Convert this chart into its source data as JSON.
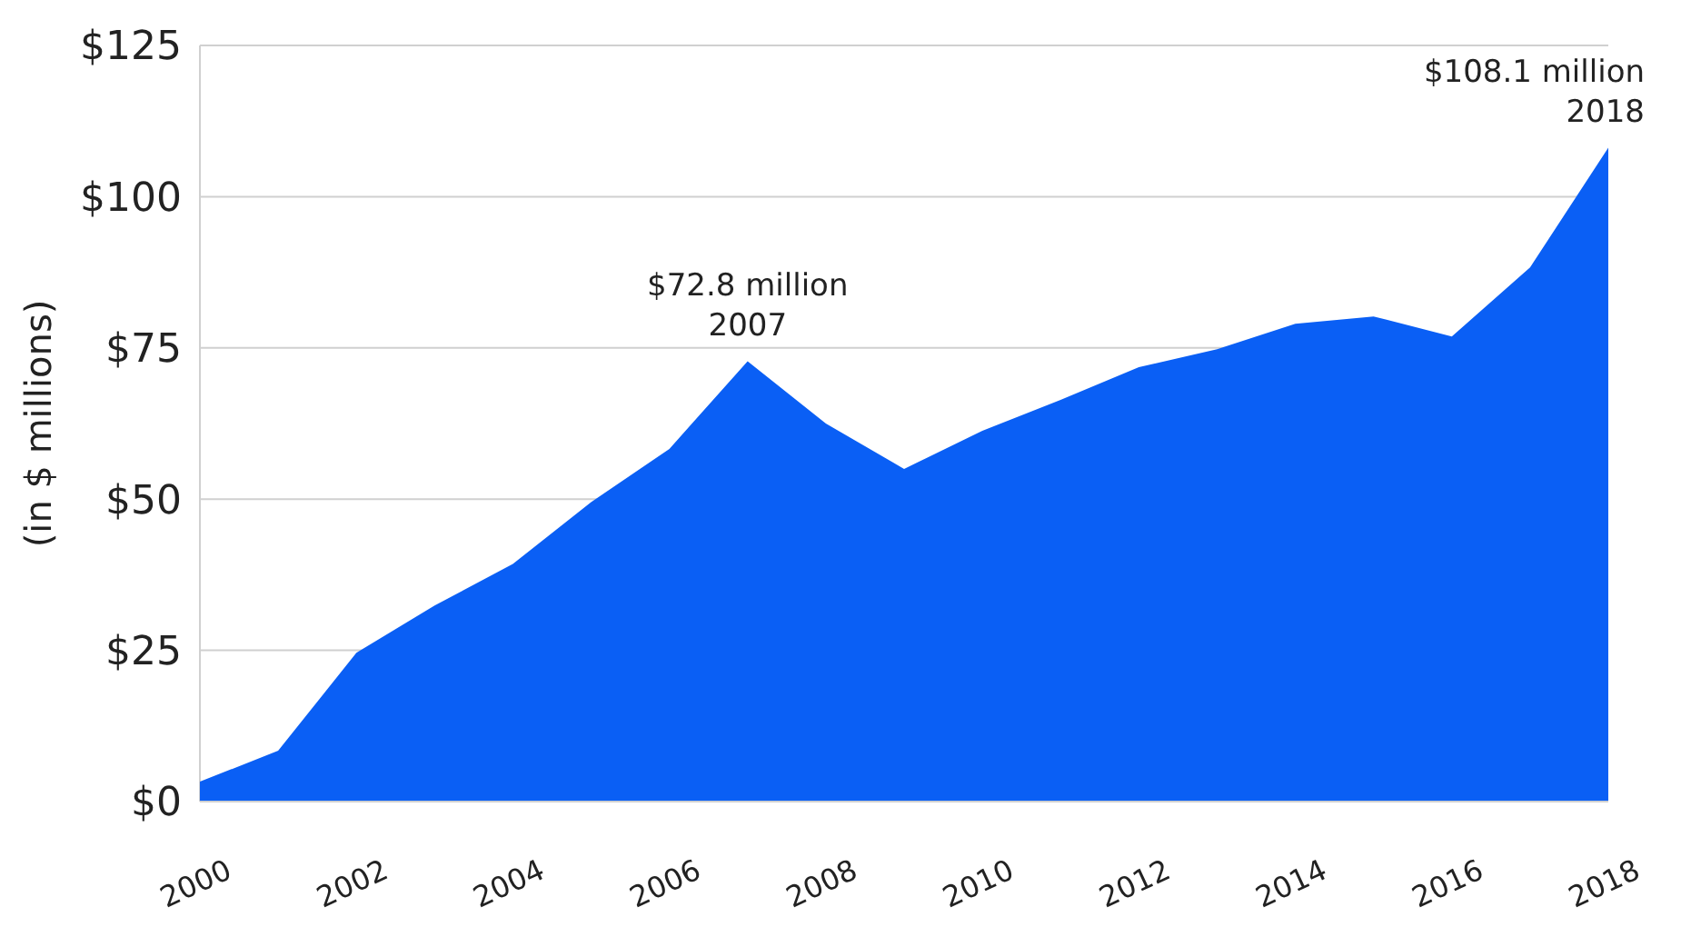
{
  "chart_data": {
    "type": "area",
    "ylabel": "(in $ millions)",
    "x": [
      2000,
      2001,
      2002,
      2003,
      2004,
      2005,
      2006,
      2007,
      2008,
      2009,
      2010,
      2011,
      2012,
      2013,
      2014,
      2015,
      2016,
      2017,
      2018
    ],
    "series": [
      {
        "color": "#0a5ff5",
        "values": [
          3.3,
          8.4,
          24.6,
          32.4,
          39.3,
          49.5,
          58.3,
          72.8,
          62.5,
          55,
          61.3,
          66.4,
          71.8,
          74.8,
          79,
          80.2,
          76.9,
          88.3,
          108.1
        ]
      }
    ],
    "xlim": [
      2000,
      2018
    ],
    "xticks": [
      2000,
      2002,
      2004,
      2006,
      2008,
      2010,
      2012,
      2014,
      2016,
      2018
    ],
    "ylim": [
      0,
      125
    ],
    "yticks": [
      {
        "value": 0,
        "label": "$0"
      },
      {
        "value": 25,
        "label": "$25"
      },
      {
        "value": 50,
        "label": "$50"
      },
      {
        "value": 75,
        "label": "$75"
      },
      {
        "value": 100,
        "label": "$100"
      },
      {
        "value": 125,
        "label": "$125"
      }
    ],
    "grid": "y",
    "annotations": [
      {
        "text": "$72.8 million\n2007",
        "x": 2007,
        "y": 72.8
      },
      {
        "text": "$108.1 million\n2018",
        "x": 2018,
        "y": 108.1
      }
    ]
  }
}
